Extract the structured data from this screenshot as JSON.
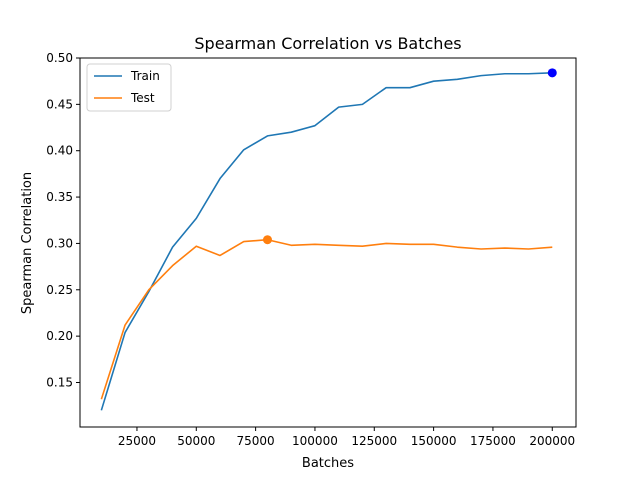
{
  "chart_data": {
    "type": "line",
    "title": "Spearman Correlation vs Batches",
    "xlabel": "Batches",
    "ylabel": "Spearman Correlation",
    "xlim": [
      1000,
      210000
    ],
    "ylim": [
      0.102,
      0.5
    ],
    "xticks": [
      25000,
      50000,
      75000,
      100000,
      125000,
      150000,
      175000,
      200000
    ],
    "yticks": [
      0.15,
      0.2,
      0.25,
      0.3,
      0.35,
      0.4,
      0.45,
      0.5
    ],
    "grid": false,
    "legend_position": "upper-left",
    "series": [
      {
        "name": "Train",
        "color": "#1f77b4",
        "x": [
          10000,
          20000,
          30000,
          40000,
          50000,
          60000,
          70000,
          80000,
          90000,
          100000,
          110000,
          120000,
          130000,
          140000,
          150000,
          160000,
          170000,
          180000,
          190000,
          200000
        ],
        "y": [
          0.12,
          0.204,
          0.248,
          0.296,
          0.327,
          0.37,
          0.401,
          0.416,
          0.42,
          0.427,
          0.447,
          0.45,
          0.468,
          0.468,
          0.475,
          0.477,
          0.481,
          0.483,
          0.483,
          0.484
        ],
        "marker": {
          "x": 200000,
          "y": 0.484,
          "color": "#0000ff"
        }
      },
      {
        "name": "Test",
        "color": "#ff7f0e",
        "x": [
          10000,
          20000,
          30000,
          40000,
          50000,
          60000,
          70000,
          80000,
          90000,
          100000,
          110000,
          120000,
          130000,
          140000,
          150000,
          160000,
          170000,
          180000,
          190000,
          200000
        ],
        "y": [
          0.132,
          0.212,
          0.25,
          0.276,
          0.297,
          0.287,
          0.302,
          0.304,
          0.298,
          0.299,
          0.298,
          0.297,
          0.3,
          0.299,
          0.299,
          0.296,
          0.294,
          0.295,
          0.294,
          0.296
        ],
        "marker": {
          "x": 80000,
          "y": 0.304,
          "color": "#ff7f0e"
        }
      }
    ]
  },
  "tick_labels": {
    "x": [
      "25000",
      "50000",
      "75000",
      "100000",
      "125000",
      "150000",
      "175000",
      "200000"
    ],
    "y": [
      "0.15",
      "0.20",
      "0.25",
      "0.30",
      "0.35",
      "0.40",
      "0.45",
      "0.50"
    ]
  }
}
